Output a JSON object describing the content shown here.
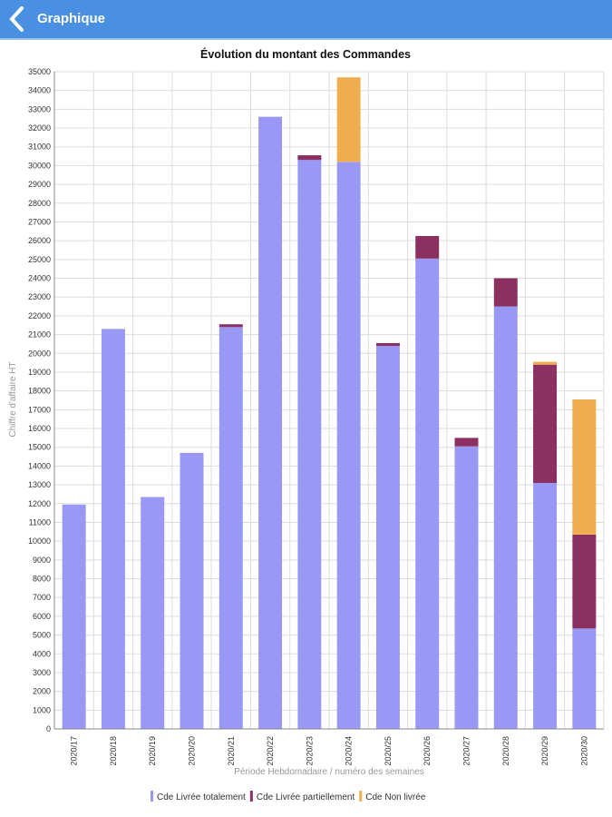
{
  "header": {
    "title": "Graphique",
    "back_icon": "chevron-left-icon"
  },
  "chart_data": {
    "type": "bar",
    "stacked": true,
    "title": "Évolution du montant des Commandes",
    "xlabel": "Période Hebdomadaire / numéro des semaines",
    "ylabel": "Chiffre d'affaire HT",
    "ylim": [
      0,
      35000
    ],
    "ytick_step": 1000,
    "grid": true,
    "legend": "bottom",
    "categories": [
      "2020/17",
      "2020/18",
      "2020/19",
      "2020/20",
      "2020/21",
      "2020/22",
      "2020/23",
      "2020/24",
      "2020/25",
      "2020/26",
      "2020/27",
      "2020/28",
      "2020/29",
      "2020/30"
    ],
    "series": [
      {
        "name": "Cde Livrée totalement",
        "color": "#9999f5",
        "values": [
          11950,
          21300,
          12350,
          14700,
          21400,
          32600,
          30300,
          30200,
          20400,
          25050,
          15050,
          22500,
          13100,
          5350
        ]
      },
      {
        "name": "Cde Livrée partiellement",
        "color": "#8b3060",
        "values": [
          0,
          0,
          0,
          0,
          150,
          0,
          250,
          0,
          150,
          1200,
          450,
          1500,
          6300,
          5000
        ]
      },
      {
        "name": "Cde Non livrée",
        "color": "#f0ad4e",
        "values": [
          0,
          0,
          0,
          0,
          0,
          0,
          0,
          4500,
          0,
          0,
          0,
          0,
          150,
          7200
        ]
      }
    ]
  }
}
